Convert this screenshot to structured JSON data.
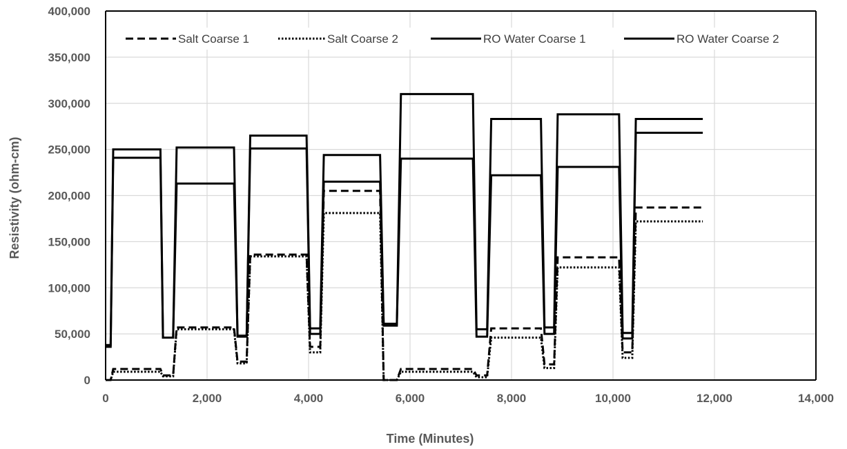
{
  "chart_data": {
    "type": "line",
    "title": "",
    "xlabel": "Time (Minutes)",
    "ylabel": "Resistivity (ohm-cm)",
    "xlim": [
      0,
      14000
    ],
    "ylim": [
      0,
      400000
    ],
    "x_ticks": [
      0,
      2000,
      4000,
      6000,
      8000,
      10000,
      12000,
      14000
    ],
    "x_tick_labels": [
      "0",
      "2,000",
      "4,000",
      "6,000",
      "8,000",
      "10,000",
      "12,000",
      "14,000"
    ],
    "y_ticks": [
      0,
      50000,
      100000,
      150000,
      200000,
      250000,
      300000,
      350000,
      400000
    ],
    "y_tick_labels": [
      "0",
      "50,000",
      "100,000",
      "150,000",
      "200,000",
      "250,000",
      "300,000",
      "350,000",
      "400,000"
    ],
    "grid": true,
    "legend_position": "top",
    "series": [
      {
        "name": "Salt Coarse 1",
        "style": "dashed",
        "color": "#000000",
        "points": [
          [
            0,
            0
          ],
          [
            100,
            0
          ],
          [
            150,
            12000
          ],
          [
            1080,
            12000
          ],
          [
            1130,
            5000
          ],
          [
            1330,
            5000
          ],
          [
            1400,
            57000
          ],
          [
            2530,
            57000
          ],
          [
            2600,
            20000
          ],
          [
            2780,
            20000
          ],
          [
            2850,
            136000
          ],
          [
            3960,
            136000
          ],
          [
            4030,
            36000
          ],
          [
            4230,
            36000
          ],
          [
            4300,
            205000
          ],
          [
            5410,
            205000
          ],
          [
            5480,
            0
          ],
          [
            5740,
            0
          ],
          [
            5820,
            12000
          ],
          [
            7240,
            12000
          ],
          [
            7310,
            5000
          ],
          [
            7520,
            5000
          ],
          [
            7600,
            56000
          ],
          [
            8580,
            56000
          ],
          [
            8650,
            17000
          ],
          [
            8840,
            17000
          ],
          [
            8910,
            133000
          ],
          [
            10120,
            133000
          ],
          [
            10190,
            30000
          ],
          [
            10380,
            30000
          ],
          [
            10450,
            187000
          ],
          [
            11770,
            187000
          ]
        ]
      },
      {
        "name": "Salt Coarse 2",
        "style": "dotted",
        "color": "#000000",
        "points": [
          [
            0,
            0
          ],
          [
            100,
            0
          ],
          [
            150,
            9000
          ],
          [
            1080,
            9000
          ],
          [
            1130,
            4000
          ],
          [
            1330,
            4000
          ],
          [
            1400,
            55000
          ],
          [
            2530,
            55000
          ],
          [
            2600,
            18000
          ],
          [
            2780,
            18000
          ],
          [
            2850,
            134000
          ],
          [
            3960,
            134000
          ],
          [
            4030,
            30000
          ],
          [
            4230,
            30000
          ],
          [
            4300,
            181000
          ],
          [
            5410,
            181000
          ],
          [
            5480,
            0
          ],
          [
            5740,
            0
          ],
          [
            5820,
            9000
          ],
          [
            7240,
            9000
          ],
          [
            7310,
            3000
          ],
          [
            7520,
            3000
          ],
          [
            7600,
            46000
          ],
          [
            8580,
            46000
          ],
          [
            8650,
            13000
          ],
          [
            8840,
            13000
          ],
          [
            8910,
            122000
          ],
          [
            10120,
            122000
          ],
          [
            10190,
            24000
          ],
          [
            10380,
            24000
          ],
          [
            10450,
            172000
          ],
          [
            11770,
            172000
          ]
        ]
      },
      {
        "name": "RO Water Coarse 1",
        "style": "solid",
        "color": "#000000",
        "points": [
          [
            0,
            36000
          ],
          [
            100,
            36000
          ],
          [
            150,
            250000
          ],
          [
            1080,
            250000
          ],
          [
            1130,
            46000
          ],
          [
            1330,
            46000
          ],
          [
            1400,
            252000
          ],
          [
            2530,
            252000
          ],
          [
            2600,
            47000
          ],
          [
            2780,
            47000
          ],
          [
            2850,
            265000
          ],
          [
            3960,
            265000
          ],
          [
            4030,
            56000
          ],
          [
            4230,
            56000
          ],
          [
            4300,
            244000
          ],
          [
            5410,
            244000
          ],
          [
            5480,
            59000
          ],
          [
            5740,
            59000
          ],
          [
            5820,
            310000
          ],
          [
            7240,
            310000
          ],
          [
            7310,
            55000
          ],
          [
            7520,
            55000
          ],
          [
            7600,
            283000
          ],
          [
            8580,
            283000
          ],
          [
            8650,
            57000
          ],
          [
            8840,
            57000
          ],
          [
            8910,
            288000
          ],
          [
            10120,
            288000
          ],
          [
            10190,
            51000
          ],
          [
            10380,
            51000
          ],
          [
            10450,
            283000
          ],
          [
            11770,
            283000
          ]
        ]
      },
      {
        "name": "RO Water Coarse 2",
        "style": "solid",
        "color": "#000000",
        "points": [
          [
            0,
            38000
          ],
          [
            100,
            38000
          ],
          [
            150,
            241000
          ],
          [
            1080,
            241000
          ],
          [
            1130,
            46000
          ],
          [
            1330,
            46000
          ],
          [
            1400,
            213000
          ],
          [
            2530,
            213000
          ],
          [
            2600,
            48000
          ],
          [
            2780,
            48000
          ],
          [
            2850,
            251000
          ],
          [
            3960,
            251000
          ],
          [
            4030,
            50000
          ],
          [
            4230,
            50000
          ],
          [
            4300,
            215000
          ],
          [
            5410,
            215000
          ],
          [
            5480,
            61000
          ],
          [
            5740,
            61000
          ],
          [
            5820,
            240000
          ],
          [
            7240,
            240000
          ],
          [
            7310,
            47000
          ],
          [
            7520,
            47000
          ],
          [
            7600,
            222000
          ],
          [
            8580,
            222000
          ],
          [
            8650,
            50000
          ],
          [
            8840,
            50000
          ],
          [
            8910,
            231000
          ],
          [
            10120,
            231000
          ],
          [
            10190,
            45000
          ],
          [
            10380,
            45000
          ],
          [
            10450,
            268000
          ],
          [
            11770,
            268000
          ]
        ]
      }
    ]
  }
}
